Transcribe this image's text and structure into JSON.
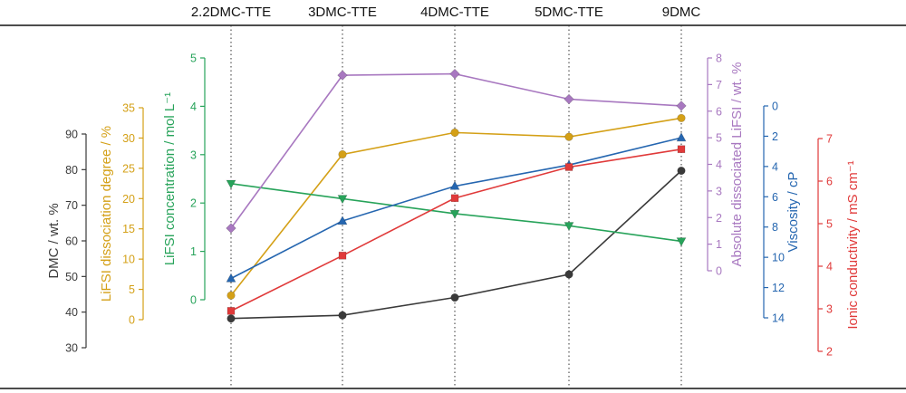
{
  "chart_data": {
    "type": "line",
    "categories": [
      "2.2DMC-TTE",
      "3DMC-TTE",
      "4DMC-TTE",
      "5DMC-TTE",
      "9DMC"
    ],
    "series": [
      {
        "key": "dmc",
        "axis_label": "DMC / wt. %",
        "color": "#3a3a3a",
        "marker": "circle",
        "ylim": [
          30,
          90
        ],
        "ticks": [
          30,
          40,
          50,
          60,
          70,
          80,
          90
        ],
        "reversed": false,
        "values": [
          38.2,
          39.1,
          44.1,
          50.6,
          79.7
        ]
      },
      {
        "key": "dissociation",
        "axis_label": "LiFSI dissociation degree / %",
        "color": "#d4a017",
        "marker": "circle",
        "ylim": [
          0,
          35
        ],
        "ticks": [
          0,
          5,
          10,
          15,
          20,
          25,
          30,
          35
        ],
        "reversed": false,
        "values": [
          4.0,
          27.3,
          30.9,
          30.2,
          33.3
        ]
      },
      {
        "key": "concentration",
        "axis_label": "LiFSI concentration / mol L⁻¹",
        "color": "#27a35a",
        "marker": "triangle-down",
        "ylim": [
          0,
          5
        ],
        "ticks": [
          0,
          1,
          2,
          3,
          4,
          5
        ],
        "reversed": false,
        "values": [
          2.4,
          2.09,
          1.78,
          1.53,
          1.21
        ]
      },
      {
        "key": "absolute",
        "axis_label": "Absolute dissociated LiFSI / wt. %",
        "color": "#a878c0",
        "marker": "diamond",
        "ylim": [
          0,
          8
        ],
        "ticks": [
          0,
          1,
          2,
          3,
          4,
          5,
          6,
          7,
          8
        ],
        "reversed": false,
        "values": [
          1.6,
          7.35,
          7.4,
          6.45,
          6.2
        ]
      },
      {
        "key": "viscosity",
        "axis_label": "Viscosity / cP",
        "color": "#2566b0",
        "marker": "triangle-up",
        "ylim": [
          0,
          14
        ],
        "ticks": [
          0,
          2,
          4,
          6,
          8,
          10,
          12,
          14
        ],
        "reversed": true,
        "values": [
          11.4,
          7.6,
          5.3,
          3.9,
          2.1
        ]
      },
      {
        "key": "conductivity",
        "axis_label": "Ionic conductivity / mS cm⁻¹",
        "color": "#e03a3a",
        "marker": "square",
        "ylim": [
          2,
          7
        ],
        "ticks": [
          2,
          3,
          4,
          5,
          6,
          7
        ],
        "reversed": false,
        "values": [
          2.95,
          4.25,
          5.6,
          6.33,
          6.75
        ]
      }
    ]
  }
}
